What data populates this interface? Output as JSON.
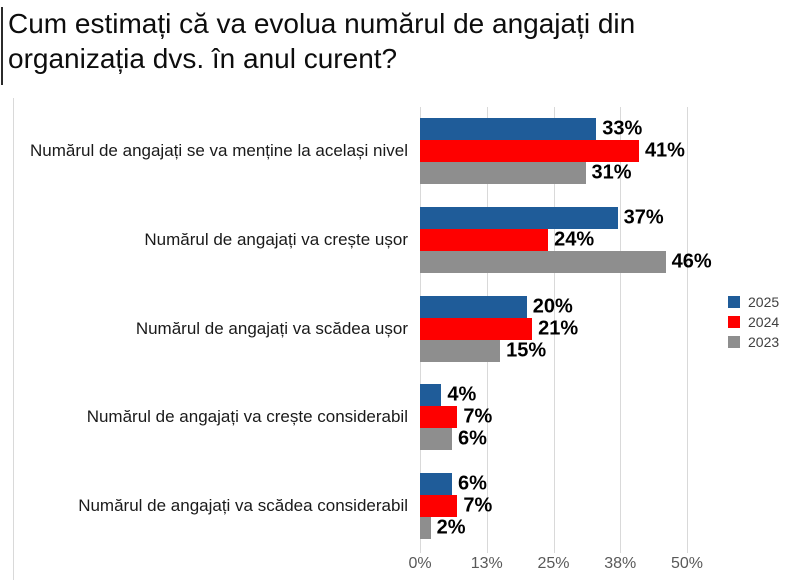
{
  "title": "Cum estimați că va evolua numărul de angajați din organizația dvs. în anul curent?",
  "background_color": "#ffffff",
  "chart_data": {
    "type": "bar",
    "orientation": "horizontal",
    "title": "Cum estimați că va evolua numărul de angajați din organizația dvs. în anul curent?",
    "categories": [
      "Numărul de angajați se va menține la același nivel",
      "Numărul de angajați va crește ușor",
      "Numărul de angajați va scădea ușor",
      "Numărul de angajați va crește considerabil",
      "Numărul de angajați va scădea considerabil"
    ],
    "series": [
      {
        "name": "2025",
        "color": "#1f5c99",
        "values": [
          33,
          37,
          20,
          4,
          6
        ]
      },
      {
        "name": "2024",
        "color": "#fe0000",
        "values": [
          41,
          24,
          21,
          7,
          7
        ]
      },
      {
        "name": "2023",
        "color": "#8e8e8e",
        "values": [
          31,
          46,
          15,
          6,
          2
        ]
      }
    ],
    "value_suffix": "%",
    "xlim": [
      0,
      50
    ],
    "x_ticks": [
      "0%",
      "13%",
      "25%",
      "38%",
      "50%"
    ],
    "grid": true,
    "legend_position": "right",
    "legend_entries": [
      "2025",
      "2024",
      "2023"
    ],
    "gridline_color": "#d9d9d9",
    "axis_tick_color": "#595959",
    "category_label_color": "#1a1a1a",
    "data_label_color": "#000000"
  }
}
